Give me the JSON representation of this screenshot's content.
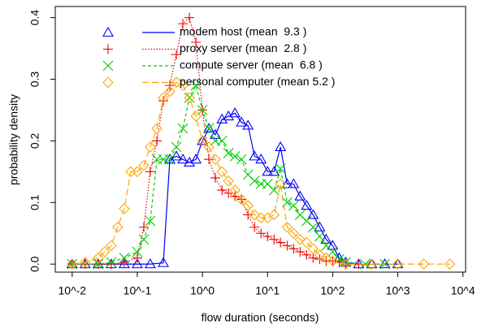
{
  "chart_data": {
    "type": "line",
    "xlabel": "flow duration (seconds)",
    "ylabel": "probability density",
    "xscale": "log",
    "xlim": [
      0.0055,
      11000
    ],
    "ylim": [
      -0.013,
      0.418
    ],
    "xticks": [
      {
        "value": 0.01,
        "label": "10^-2"
      },
      {
        "value": 0.1,
        "label": "10^-1"
      },
      {
        "value": 1,
        "label": "10^0"
      },
      {
        "value": 10,
        "label": "10^1"
      },
      {
        "value": 100,
        "label": "10^2"
      },
      {
        "value": 1000,
        "label": "10^3"
      },
      {
        "value": 10000,
        "label": "10^4"
      }
    ],
    "yticks": [
      {
        "value": 0,
        "label": "0.0"
      },
      0.1,
      0.2,
      0.3,
      0.4
    ],
    "legend": "top-left",
    "series": [
      {
        "name": "modem host (mean  9.3 )",
        "color": "#0000ff",
        "marker": "triangle",
        "linestyle": "solid",
        "x": [
          0.01,
          0.0158,
          0.0251,
          0.0398,
          0.0631,
          0.1,
          0.158,
          0.251,
          0.316,
          0.398,
          0.501,
          0.631,
          0.794,
          1,
          1.26,
          1.58,
          2,
          2.51,
          3.16,
          3.98,
          5.01,
          6.31,
          7.94,
          10,
          12.6,
          15.8,
          20,
          25.1,
          31.6,
          39.8,
          50.1,
          63.1,
          79.4,
          100,
          126,
          158,
          251,
          398,
          631,
          1000
        ],
        "values": [
          0,
          0,
          0,
          0,
          0,
          0,
          0,
          0.002,
          0.17,
          0.175,
          0.17,
          0.165,
          0.17,
          0.2,
          0.22,
          0.21,
          0.235,
          0.24,
          0.245,
          0.23,
          0.225,
          0.175,
          0.17,
          0.15,
          0.15,
          0.19,
          0.13,
          0.13,
          0.11,
          0.095,
          0.08,
          0.06,
          0.04,
          0.03,
          0.01,
          0.003,
          0,
          0,
          0,
          0
        ]
      },
      {
        "name": "proxy server (mean  2.8 )",
        "color": "#ee0000",
        "marker": "plus",
        "linestyle": "dotted",
        "x": [
          0.01,
          0.0158,
          0.0251,
          0.0398,
          0.0631,
          0.1,
          0.126,
          0.158,
          0.2,
          0.251,
          0.316,
          0.398,
          0.501,
          0.631,
          0.794,
          1,
          1.26,
          1.58,
          2,
          2.51,
          3.16,
          3.98,
          5.01,
          6.31,
          7.94,
          10,
          12.6,
          15.8,
          20,
          25.1,
          31.6,
          39.8,
          50.1,
          63.1,
          79.4,
          100,
          126,
          158,
          251
        ],
        "values": [
          0,
          0,
          0,
          0,
          0.003,
          0.01,
          0.06,
          0.15,
          0.2,
          0.265,
          0.29,
          0.34,
          0.39,
          0.4,
          0.36,
          0.25,
          0.17,
          0.14,
          0.12,
          0.115,
          0.11,
          0.105,
          0.08,
          0.06,
          0.05,
          0.045,
          0.04,
          0.035,
          0.03,
          0.025,
          0.02,
          0.015,
          0.01,
          0.008,
          0.005,
          0.005,
          0.003,
          0,
          0
        ]
      },
      {
        "name": "compute server (mean  6.8 )",
        "color": "#00cc00",
        "marker": "cross",
        "linestyle": "dashed",
        "x": [
          0.01,
          0.0251,
          0.0398,
          0.0631,
          0.1,
          0.126,
          0.158,
          0.2,
          0.251,
          0.316,
          0.398,
          0.501,
          0.631,
          0.794,
          1,
          1.26,
          1.58,
          2,
          2.51,
          3.16,
          3.98,
          5.01,
          6.31,
          7.94,
          10,
          12.6,
          15.8,
          20,
          25.1,
          31.6,
          39.8,
          50.1,
          63.1,
          79.4,
          100,
          126,
          158,
          316,
          631
        ],
        "values": [
          0,
          0,
          0.003,
          0.01,
          0.02,
          0.04,
          0.07,
          0.17,
          0.17,
          0.17,
          0.19,
          0.22,
          0.27,
          0.29,
          0.25,
          0.22,
          0.2,
          0.2,
          0.18,
          0.175,
          0.17,
          0.145,
          0.135,
          0.13,
          0.13,
          0.12,
          0.155,
          0.1,
          0.095,
          0.08,
          0.07,
          0.06,
          0.045,
          0.03,
          0.02,
          0.008,
          0.003,
          0,
          0
        ]
      },
      {
        "name": "personal computer (mean 5.2 )",
        "color": "#ffa500",
        "marker": "diamond",
        "linestyle": "longdash",
        "x": [
          0.01,
          0.0158,
          0.0251,
          0.0316,
          0.0398,
          0.0501,
          0.0631,
          0.0794,
          0.1,
          0.126,
          0.158,
          0.2,
          0.251,
          0.316,
          0.398,
          0.501,
          0.631,
          0.794,
          1,
          1.26,
          1.58,
          2,
          2.51,
          3.16,
          3.98,
          5.01,
          6.31,
          7.94,
          10,
          12.6,
          15.8,
          20,
          25.1,
          31.6,
          39.8,
          50.1,
          63.1,
          79.4,
          100,
          158,
          398,
          1000,
          2510,
          6310
        ],
        "values": [
          0,
          0.003,
          0.01,
          0.02,
          0.03,
          0.06,
          0.09,
          0.15,
          0.15,
          0.16,
          0.19,
          0.22,
          0.27,
          0.28,
          0.295,
          0.29,
          0.27,
          0.24,
          0.2,
          0.19,
          0.17,
          0.15,
          0.135,
          0.12,
          0.105,
          0.095,
          0.08,
          0.075,
          0.075,
          0.08,
          0.13,
          0.06,
          0.05,
          0.04,
          0.035,
          0.025,
          0.015,
          0.01,
          0.005,
          0,
          0,
          0,
          0,
          0
        ]
      }
    ]
  }
}
